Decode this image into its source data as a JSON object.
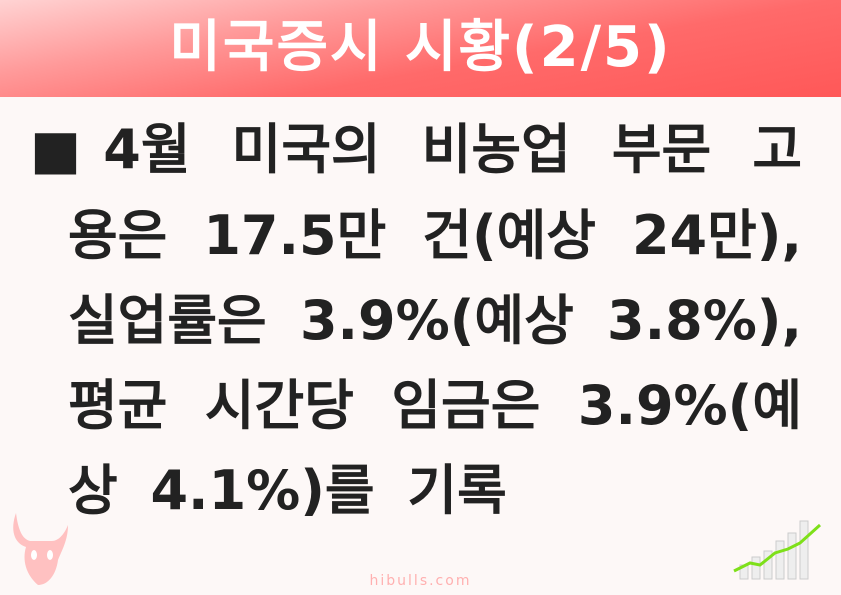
{
  "header": {
    "title": "미국증시 시황(2/5)"
  },
  "body": {
    "lines": [
      "■4월 미국의 비농업 부문 고",
      "용은 17.5만 건(예상 24만),",
      "실업률은 3.9%(예상 3.8%),",
      "평균 시간당 임금은 3.9%(예",
      "상 4.1%)를 기록"
    ]
  },
  "footer": {
    "site": "hibulls.com"
  },
  "colors": {
    "header_top": "#ffd3d3",
    "header_bottom": "#ff5858",
    "text": "#222222",
    "logo": "#ffb0b0"
  }
}
